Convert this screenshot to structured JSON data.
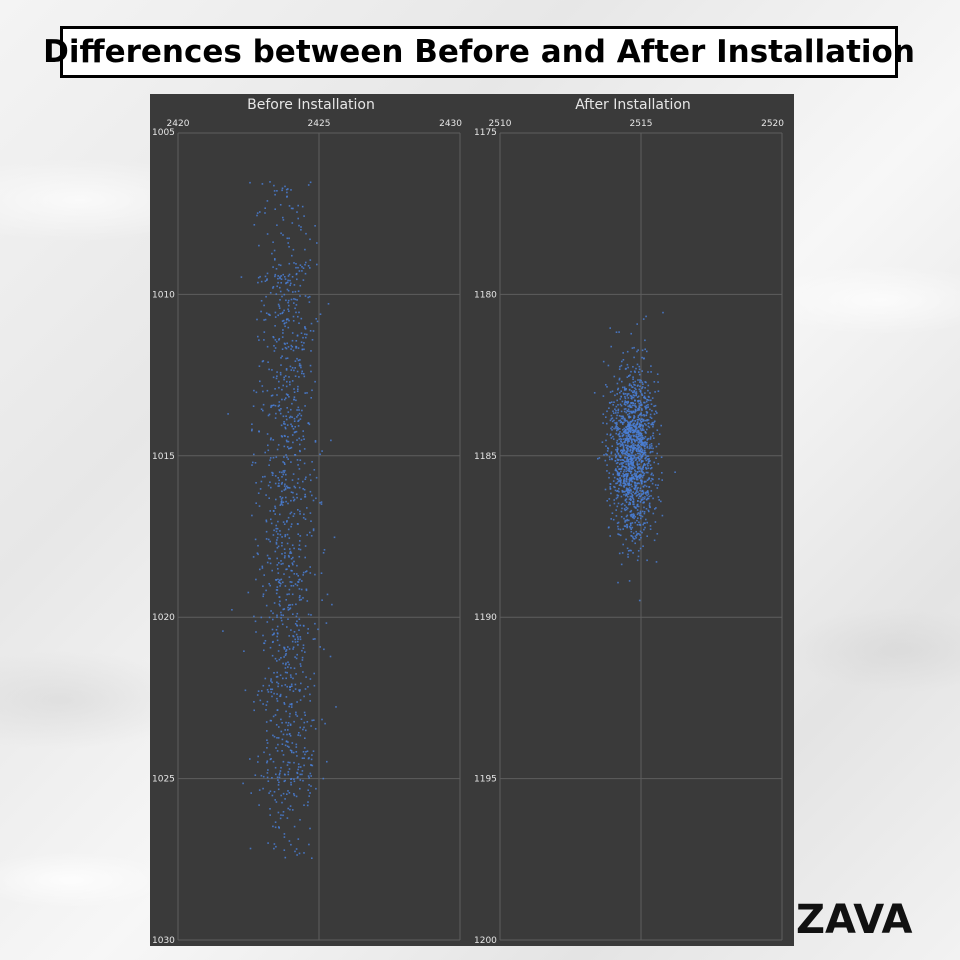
{
  "header": {
    "title": "Differences between Before and After Installation"
  },
  "logo": {
    "text": "ZAVA"
  },
  "colors": {
    "panel_bg": "#3a3a3a",
    "grid": "#5e5e5e",
    "point": "#4a7fd6",
    "text": "#e6e6e6"
  },
  "chart_data": [
    {
      "type": "scatter",
      "title": "Before Installation",
      "xlim": [
        2420,
        2430
      ],
      "ylim": [
        1005,
        1030
      ],
      "y_inverted": true,
      "x_ticks": [
        2420,
        2425,
        2430
      ],
      "y_ticks": [
        1005,
        1010,
        1015,
        1020,
        1025,
        1030
      ],
      "grid": true,
      "series": [
        {
          "distribution": "scattered vertical band",
          "x_center": 2423.9,
          "x_spread": 0.55,
          "y_range": [
            1006.5,
            1027.5
          ],
          "approx_points": 1400
        }
      ]
    },
    {
      "type": "scatter",
      "title": "After Installation",
      "xlim": [
        2510,
        2520
      ],
      "ylim": [
        1175,
        1200
      ],
      "y_inverted": true,
      "x_ticks": [
        2510,
        2515,
        2520
      ],
      "y_ticks": [
        1175,
        1180,
        1185,
        1190,
        1195,
        1200
      ],
      "grid": true,
      "series": [
        {
          "distribution": "dense compact cluster",
          "x_center": 2514.7,
          "x_spread": 0.4,
          "y_center": 1184.9,
          "y_spread": 1.3,
          "approx_points": 1500
        }
      ]
    }
  ]
}
